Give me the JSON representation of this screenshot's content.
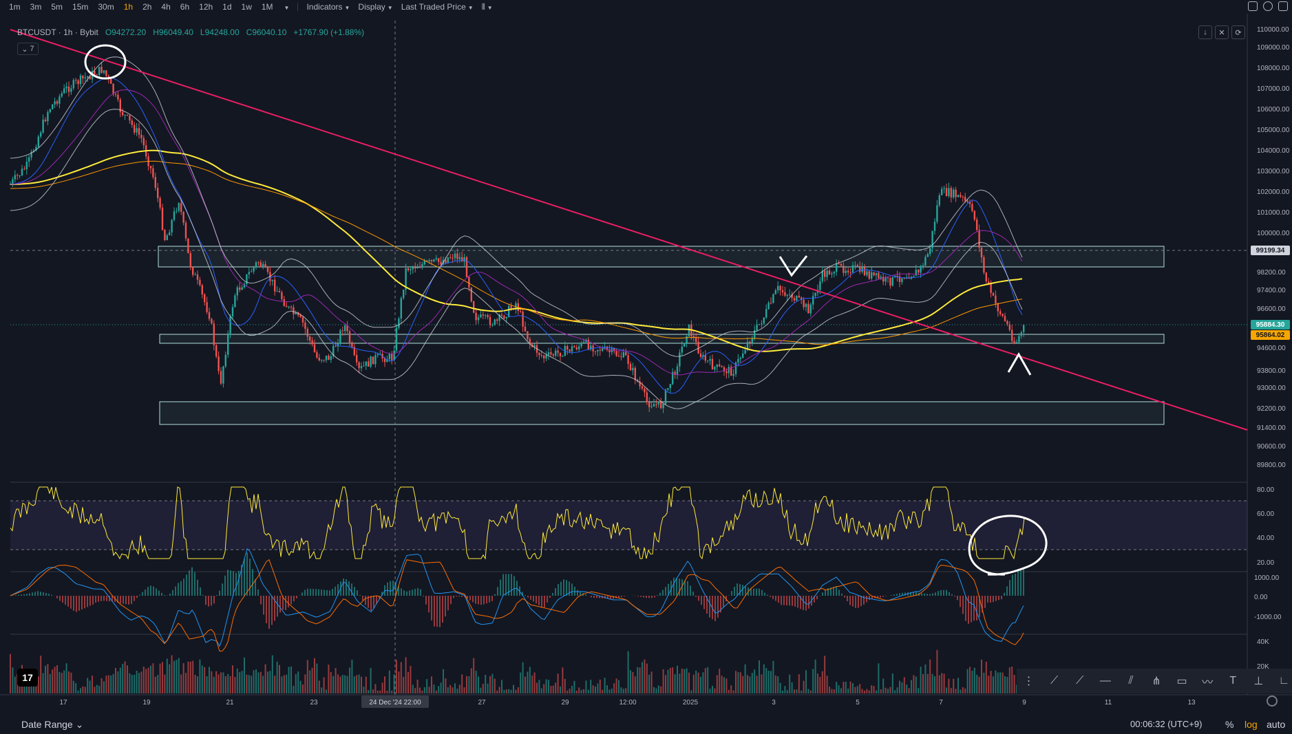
{
  "toolbar": {
    "timeframes": [
      "1m",
      "3m",
      "5m",
      "15m",
      "30m",
      "1h",
      "2h",
      "4h",
      "6h",
      "12h",
      "1d",
      "1w",
      "1M"
    ],
    "active_timeframe": "1h",
    "indicators_label": "Indicators",
    "display_label": "Display",
    "price_mode_label": "Last Traded Price"
  },
  "legend": {
    "symbol": "BTCUSDT · 1h · Bybit",
    "open": "O94272.20",
    "high": "H96049.40",
    "low": "L94248.00",
    "close": "C96040.10",
    "change": "+1767.90 (+1.88%)",
    "indicator_count": "7"
  },
  "price_axis": {
    "ticks": [
      "110000.00",
      "109000.00",
      "108000.00",
      "107000.00",
      "106000.00",
      "105000.00",
      "104000.00",
      "103000.00",
      "102000.00",
      "101000.00",
      "100000.00",
      "98200.00",
      "97400.00",
      "96600.00",
      "94600.00",
      "93800.00",
      "93000.00",
      "92200.00",
      "91400.00",
      "90600.00",
      "89800.00"
    ],
    "crosshair_price": "99199.34",
    "last_price": "95884.30",
    "alt_price": "95864.02"
  },
  "rsi_axis": {
    "ticks": [
      "80.00",
      "60.00",
      "40.00",
      "20.00"
    ]
  },
  "macd_axis": {
    "ticks": [
      "1000.00",
      "0.00",
      "-1000.00"
    ]
  },
  "volume_axis": {
    "ticks": [
      "40K",
      "20K"
    ]
  },
  "time_axis": {
    "labels": [
      "17",
      "19",
      "21",
      "23",
      "27",
      "29",
      "12:00",
      "2025",
      "3",
      "5",
      "7",
      "9",
      "11",
      "13"
    ],
    "crosshair_label": "24 Dec '24   22:00"
  },
  "bottom": {
    "date_range": "Date Range",
    "clock": "00:06:32 (UTC+9)",
    "percent": "%",
    "log": "log",
    "auto": "auto"
  },
  "colors": {
    "background": "#131722",
    "up": "#26a69a",
    "down": "#ef5350",
    "trendline": "#e91e63",
    "ma_yellow": "#ffeb3b",
    "ma_orange": "#ff9800",
    "ma_blue": "#2962ff",
    "ma_purple": "#9c27b0",
    "bands": "#d1d4dc",
    "accent": "#f7a600"
  }
}
